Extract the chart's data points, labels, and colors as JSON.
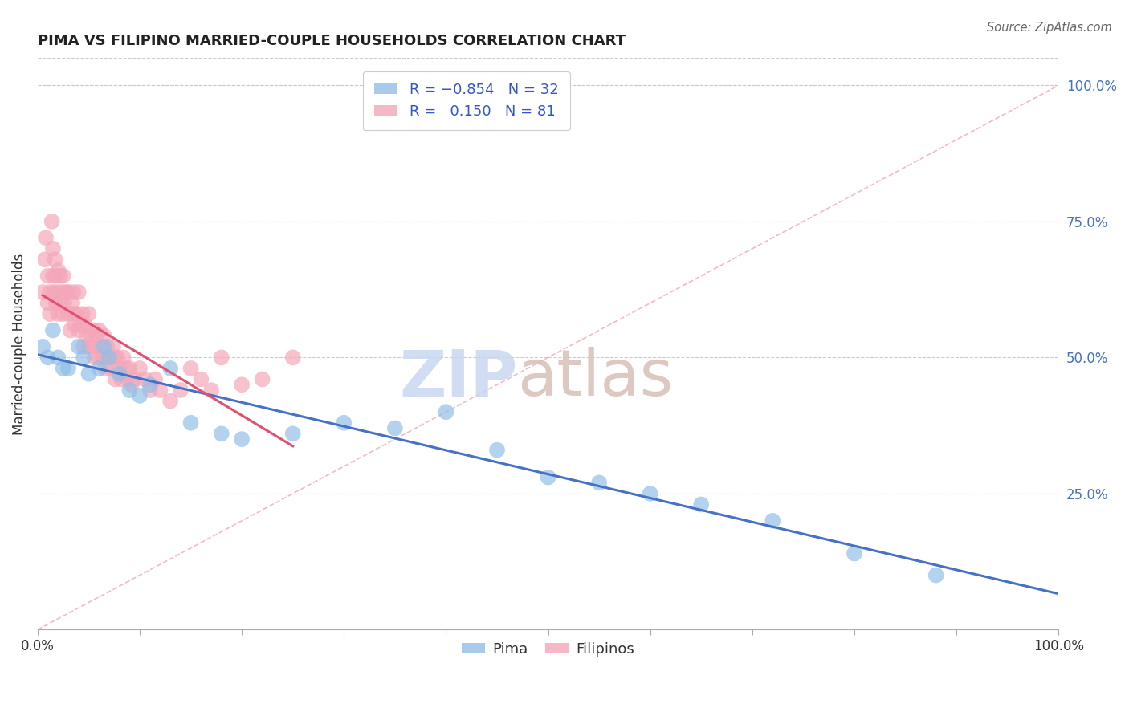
{
  "title": "PIMA VS FILIPINO MARRIED-COUPLE HOUSEHOLDS CORRELATION CHART",
  "source": "Source: ZipAtlas.com",
  "ylabel": "Married-couple Households",
  "ytick_labels": [
    "25.0%",
    "50.0%",
    "75.0%",
    "100.0%"
  ],
  "ytick_values": [
    0.25,
    0.5,
    0.75,
    1.0
  ],
  "pima_color": "#92bfe8",
  "pima_line_color": "#4472c4",
  "filipino_color": "#f4a7b9",
  "filipino_line_color": "#e05070",
  "diagonal_color": "#f4a7b9",
  "background_color": "#ffffff",
  "grid_color": "#cccccc",
  "watermark_zip_color": "#c8d8f0",
  "watermark_atlas_color": "#d8c8c0",
  "xlim": [
    0.0,
    1.0
  ],
  "ylim": [
    0.0,
    1.05
  ],
  "pima_x": [
    0.005,
    0.01,
    0.015,
    0.02,
    0.025,
    0.03,
    0.04,
    0.045,
    0.05,
    0.06,
    0.065,
    0.07,
    0.08,
    0.09,
    0.1,
    0.11,
    0.13,
    0.15,
    0.18,
    0.2,
    0.25,
    0.3,
    0.35,
    0.4,
    0.45,
    0.5,
    0.55,
    0.6,
    0.65,
    0.72,
    0.8,
    0.88
  ],
  "pima_y": [
    0.52,
    0.5,
    0.55,
    0.5,
    0.48,
    0.48,
    0.52,
    0.5,
    0.47,
    0.48,
    0.52,
    0.5,
    0.47,
    0.44,
    0.43,
    0.45,
    0.48,
    0.38,
    0.36,
    0.35,
    0.36,
    0.38,
    0.37,
    0.4,
    0.33,
    0.28,
    0.27,
    0.25,
    0.23,
    0.2,
    0.14,
    0.1
  ],
  "filipino_x": [
    0.005,
    0.007,
    0.008,
    0.01,
    0.01,
    0.012,
    0.012,
    0.014,
    0.015,
    0.015,
    0.016,
    0.017,
    0.018,
    0.018,
    0.02,
    0.02,
    0.02,
    0.022,
    0.022,
    0.024,
    0.025,
    0.025,
    0.026,
    0.028,
    0.03,
    0.03,
    0.032,
    0.034,
    0.035,
    0.035,
    0.036,
    0.038,
    0.04,
    0.04,
    0.042,
    0.044,
    0.045,
    0.046,
    0.048,
    0.05,
    0.05,
    0.052,
    0.054,
    0.055,
    0.056,
    0.058,
    0.06,
    0.06,
    0.062,
    0.064,
    0.065,
    0.066,
    0.068,
    0.07,
    0.072,
    0.074,
    0.075,
    0.076,
    0.078,
    0.08,
    0.082,
    0.084,
    0.086,
    0.088,
    0.09,
    0.092,
    0.095,
    0.1,
    0.105,
    0.11,
    0.115,
    0.12,
    0.13,
    0.14,
    0.15,
    0.16,
    0.17,
    0.18,
    0.2,
    0.22,
    0.25
  ],
  "filipino_y": [
    0.62,
    0.68,
    0.72,
    0.6,
    0.65,
    0.58,
    0.62,
    0.75,
    0.65,
    0.7,
    0.62,
    0.68,
    0.6,
    0.65,
    0.58,
    0.62,
    0.66,
    0.6,
    0.65,
    0.62,
    0.58,
    0.65,
    0.6,
    0.62,
    0.58,
    0.62,
    0.55,
    0.6,
    0.58,
    0.62,
    0.56,
    0.58,
    0.55,
    0.62,
    0.56,
    0.58,
    0.52,
    0.56,
    0.54,
    0.52,
    0.58,
    0.54,
    0.52,
    0.55,
    0.5,
    0.54,
    0.5,
    0.55,
    0.52,
    0.5,
    0.54,
    0.48,
    0.52,
    0.5,
    0.48,
    0.52,
    0.5,
    0.46,
    0.5,
    0.48,
    0.46,
    0.5,
    0.48,
    0.46,
    0.48,
    0.45,
    0.46,
    0.48,
    0.46,
    0.44,
    0.46,
    0.44,
    0.42,
    0.44,
    0.48,
    0.46,
    0.44,
    0.5,
    0.45,
    0.46,
    0.5
  ]
}
